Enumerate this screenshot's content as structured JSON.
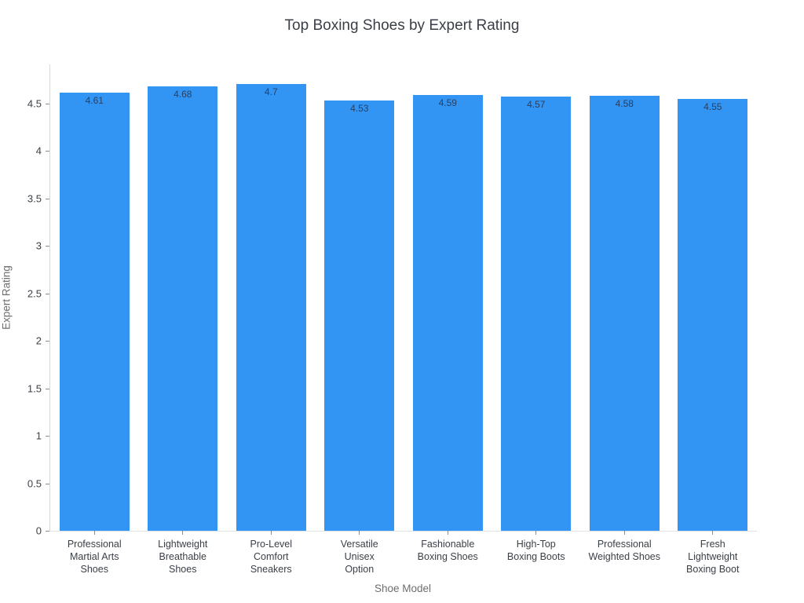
{
  "chart_data": {
    "type": "bar",
    "title": "Top Boxing Shoes by Expert Rating",
    "xlabel": "Shoe Model",
    "ylabel": "Expert Rating",
    "categories": [
      "Professional Martial Arts Shoes",
      "Lightweight Breathable Shoes",
      "Pro-Level Comfort Sneakers",
      "Versatile Unisex Option",
      "Fashionable Boxing Shoes",
      "High-Top Boxing Boots",
      "Professional Weighted Shoes",
      "Fresh Lightweight Boxing Boot"
    ],
    "category_lines": [
      [
        "Professional",
        "Martial Arts",
        "Shoes"
      ],
      [
        "Lightweight",
        "Breathable",
        "Shoes"
      ],
      [
        "Pro-Level",
        "Comfort",
        "Sneakers"
      ],
      [
        "Versatile",
        "Unisex",
        "Option"
      ],
      [
        "Fashionable",
        "Boxing Shoes"
      ],
      [
        "High-Top",
        "Boxing Boots"
      ],
      [
        "Professional",
        "Weighted Shoes"
      ],
      [
        "Fresh",
        "Lightweight",
        "Boxing Boot"
      ]
    ],
    "values": [
      4.61,
      4.68,
      4.7,
      4.53,
      4.59,
      4.57,
      4.58,
      4.55
    ],
    "value_labels": [
      "4.61",
      "4.68",
      "4.7",
      "4.53",
      "4.59",
      "4.57",
      "4.58",
      "4.55"
    ],
    "yticks": [
      0,
      0.5,
      1,
      1.5,
      2,
      2.5,
      3,
      3.5,
      4,
      4.5
    ],
    "ytick_labels": [
      "0",
      "0.5",
      "1",
      "1.5",
      "2",
      "2.5",
      "3",
      "3.5",
      "4",
      "4.5"
    ],
    "ylim": [
      0,
      4.91
    ],
    "grid": false,
    "legend": "none",
    "bar_color": "#3295f4",
    "value_label_color": "#2a3f5f"
  }
}
